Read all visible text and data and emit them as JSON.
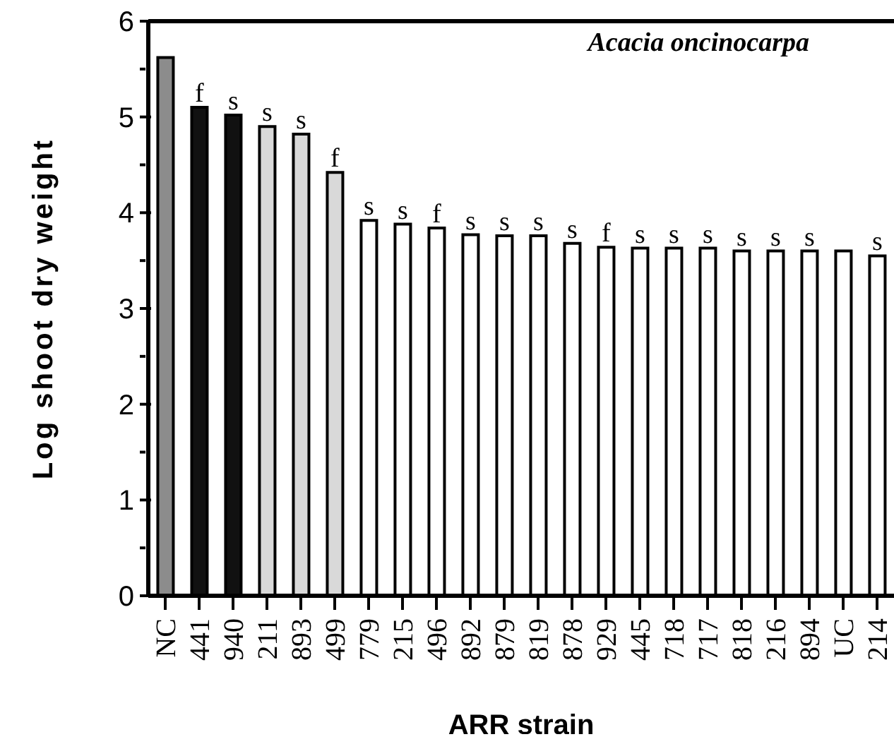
{
  "chart_data": {
    "type": "bar",
    "title": "Acacia oncinocarpa",
    "xlabel": "ARR strain",
    "ylabel": "Log shoot dry weight",
    "categories": [
      "NC",
      "441",
      "940",
      "211",
      "893",
      "499",
      "779",
      "215",
      "496",
      "892",
      "879",
      "819",
      "878",
      "929",
      "445",
      "718",
      "717",
      "818",
      "216",
      "894",
      "UC",
      "214"
    ],
    "values": [
      5.62,
      5.1,
      5.02,
      4.9,
      4.82,
      4.42,
      3.92,
      3.88,
      3.84,
      3.77,
      3.76,
      3.76,
      3.68,
      3.64,
      3.63,
      3.63,
      3.63,
      3.6,
      3.6,
      3.6,
      3.6,
      3.55
    ],
    "colors": [
      "#8c8c8c",
      "#111111",
      "#111111",
      "#d9d9d9",
      "#d9d9d9",
      "#d9d9d9",
      "#ffffff",
      "#ffffff",
      "#ffffff",
      "#ffffff",
      "#ffffff",
      "#ffffff",
      "#ffffff",
      "#ffffff",
      "#ffffff",
      "#ffffff",
      "#ffffff",
      "#ffffff",
      "#ffffff",
      "#ffffff",
      "#ffffff",
      "#ffffff"
    ],
    "value_labels": [
      null,
      "f",
      "s",
      "s",
      "s",
      "f",
      "s",
      "s",
      "f",
      "s",
      "s",
      "s",
      "s",
      "f",
      "s",
      "s",
      "s",
      "s",
      "s",
      "s",
      null,
      "s"
    ],
    "ylim": [
      0,
      6
    ],
    "yticks": [
      0,
      {
        "value": 0.5,
        "label": null
      },
      1,
      {
        "value": 1.5,
        "label": null
      },
      2,
      {
        "value": 2.5,
        "label": null
      },
      3,
      {
        "value": 3.5,
        "label": null
      },
      4,
      {
        "value": 4.5,
        "label": null
      },
      5,
      {
        "value": 5.5,
        "label": null
      },
      6
    ],
    "tick_labels": "xy"
  }
}
